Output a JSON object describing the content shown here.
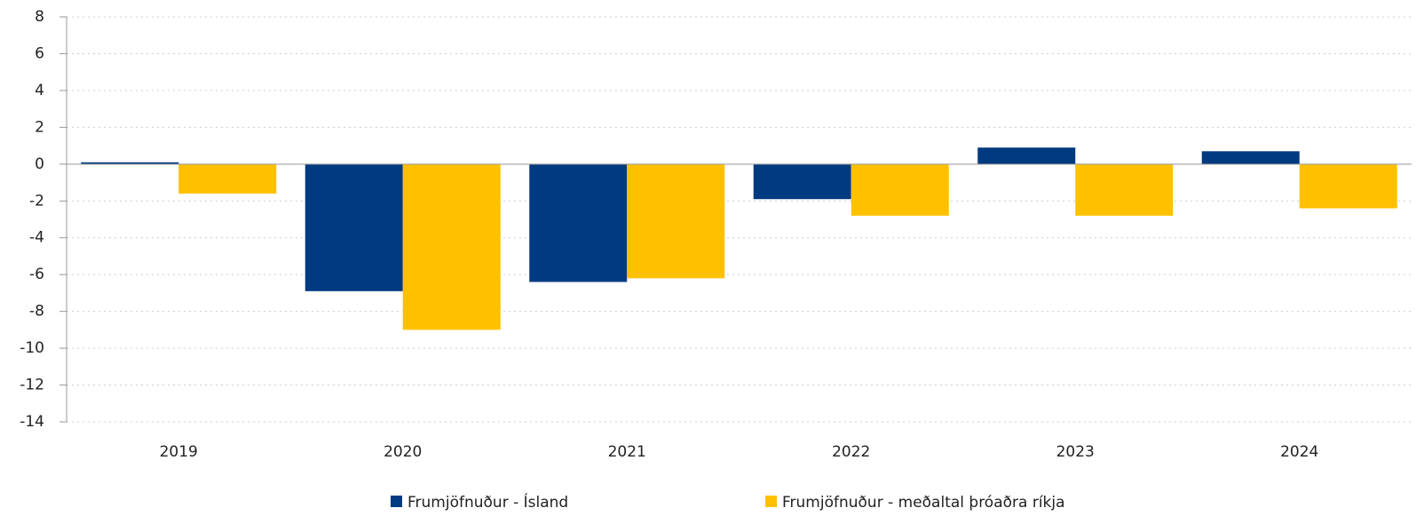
{
  "chart_data": {
    "type": "bar",
    "categories": [
      "2019",
      "2020",
      "2021",
      "2022",
      "2023",
      "2024"
    ],
    "series": [
      {
        "name": "Frumjöfnuður - Ísland",
        "color": "#003a80",
        "values": [
          0.1,
          -6.9,
          -6.4,
          -1.9,
          0.9,
          0.7
        ]
      },
      {
        "name": "Frumjöfnuður - meðaltal þróaðra ríkja",
        "color": "#ffc000",
        "values": [
          -1.6,
          -9.0,
          -6.2,
          -2.8,
          -2.8,
          -2.4
        ]
      }
    ],
    "ylim": [
      -14,
      8
    ],
    "yticks": [
      -14,
      -12,
      -10,
      -8,
      -6,
      -4,
      -2,
      0,
      2,
      4,
      6,
      8
    ],
    "grid": true,
    "legend": "bottom"
  }
}
